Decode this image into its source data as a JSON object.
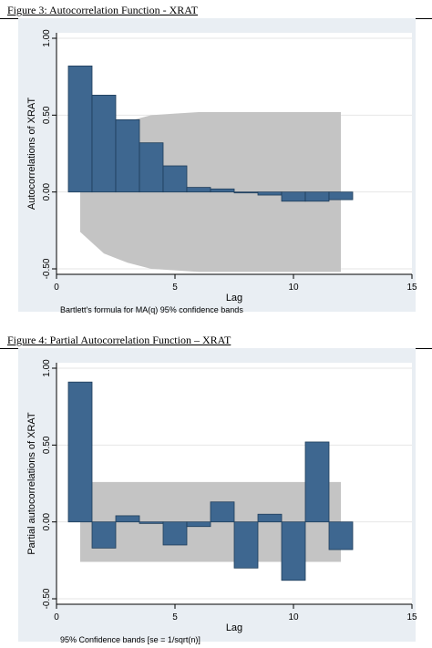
{
  "figures": [
    {
      "caption": "Figure 3: Autocorrelation Function - XRAT"
    },
    {
      "caption": "Figure 4: Partial Autocorrelation Function – XRAT"
    }
  ],
  "colors": {
    "bar_fill": "#3e6790",
    "bar_stroke": "#1e3d5a",
    "band": "#c4c4c4",
    "background": "#e9eef3",
    "plot_bg": "#ffffff"
  },
  "chart_data": [
    {
      "type": "bar",
      "x": [
        1,
        2,
        3,
        4,
        5,
        6,
        7,
        8,
        9,
        10,
        11,
        12
      ],
      "values": [
        0.82,
        0.63,
        0.47,
        0.32,
        0.17,
        0.03,
        0.02,
        0.0,
        -0.02,
        -0.06,
        -0.06,
        -0.05
      ],
      "band_upper": [
        0.26,
        0.4,
        0.46,
        0.5,
        0.51,
        0.52,
        0.52,
        0.52,
        0.52,
        0.52,
        0.52,
        0.52
      ],
      "band_lower": [
        -0.26,
        -0.4,
        -0.46,
        -0.5,
        -0.51,
        -0.52,
        -0.52,
        -0.52,
        -0.52,
        -0.52,
        -0.52,
        -0.52
      ],
      "title": "",
      "xlabel": "Lag",
      "ylabel": "Autocorrelations of XRAT",
      "xlim": [
        0,
        15
      ],
      "ylim": [
        -0.5,
        1.0
      ],
      "xticks": [
        "0",
        "5",
        "10",
        "15"
      ],
      "yticks": [
        "-0.50",
        "0.00",
        "0.50",
        "1.00"
      ],
      "note": "Bartlett's formula for MA(q) 95% confidence bands",
      "grid": "horizontal"
    },
    {
      "type": "bar",
      "x": [
        1,
        2,
        3,
        4,
        5,
        6,
        7,
        8,
        9,
        10,
        11,
        12
      ],
      "values": [
        0.91,
        -0.17,
        0.04,
        -0.01,
        -0.15,
        -0.03,
        0.13,
        -0.3,
        0.05,
        -0.38,
        0.52,
        -0.18
      ],
      "band_upper": [
        0.26,
        0.26,
        0.26,
        0.26,
        0.26,
        0.26,
        0.26,
        0.26,
        0.26,
        0.26,
        0.26,
        0.26
      ],
      "band_lower": [
        -0.26,
        -0.26,
        -0.26,
        -0.26,
        -0.26,
        -0.26,
        -0.26,
        -0.26,
        -0.26,
        -0.26,
        -0.26,
        -0.26
      ],
      "title": "",
      "xlabel": "Lag",
      "ylabel": "Partial autocorrelations of XRAT",
      "xlim": [
        0,
        15
      ],
      "ylim": [
        -0.5,
        1.0
      ],
      "xticks": [
        "0",
        "5",
        "10",
        "15"
      ],
      "yticks": [
        "-0.50",
        "0.00",
        "0.50",
        "1.00"
      ],
      "note": "95% Confidence bands [se = 1/sqrt(n)]",
      "grid": "horizontal"
    }
  ]
}
